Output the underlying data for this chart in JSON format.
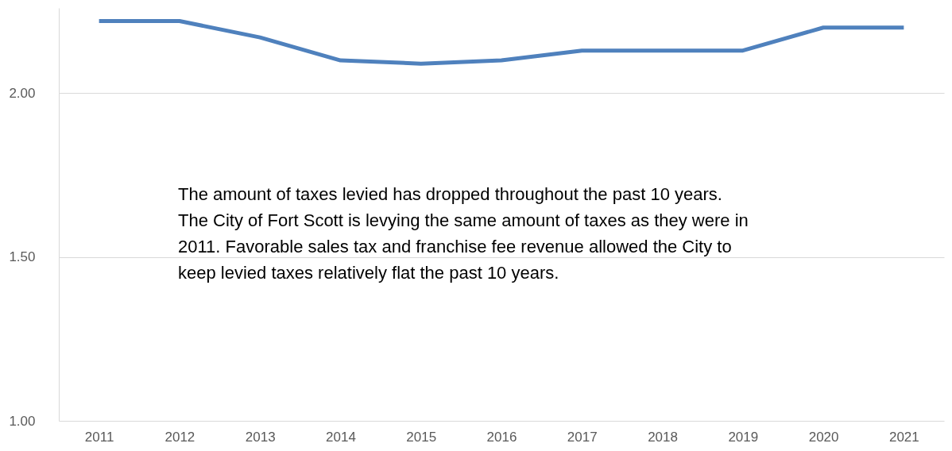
{
  "chart_data": {
    "type": "line",
    "categories": [
      "2011",
      "2012",
      "2013",
      "2014",
      "2015",
      "2016",
      "2017",
      "2018",
      "2019",
      "2020",
      "2021"
    ],
    "series": [
      {
        "color": "#4f81bd",
        "values": [
          2.22,
          2.22,
          2.17,
          2.1,
          2.09,
          2.1,
          2.13,
          2.13,
          2.13,
          2.2,
          2.2
        ]
      }
    ],
    "ylim": [
      1.0,
      2.26
    ],
    "yticks": [
      {
        "value": 1.0,
        "label": "1.00"
      },
      {
        "value": 1.5,
        "label": "1.50"
      },
      {
        "value": 2.0,
        "label": "2.00"
      }
    ],
    "grid": "y",
    "marker": "none",
    "line_style": "solid",
    "annotations": [
      "The amount of taxes levied has dropped throughout the past 10 years.\nThe City of Fort Scott is levying the same amount of taxes as they were in\n2011.  Favorable sales tax and franchise fee revenue allowed the City to\nkeep levied taxes relatively flat the past 10 years."
    ]
  }
}
